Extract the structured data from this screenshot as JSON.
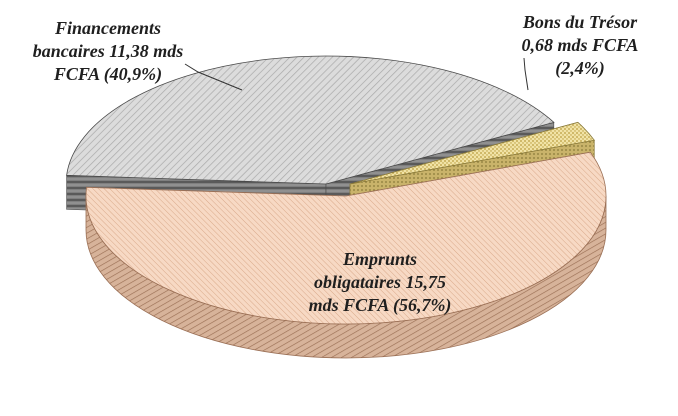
{
  "chart_data": {
    "type": "pie",
    "title": "",
    "slices": [
      {
        "name": "Financements bancaires",
        "value": 11.38,
        "percent": 40.9,
        "unit": "mds FCFA",
        "label_lines": [
          "Financements",
          "bancaires  11,38 mds",
          "FCFA (40,9%)"
        ],
        "colors": {
          "base": "#dcdcdc",
          "hatch": "#a9a9a9",
          "side": "#7f7f7f",
          "side_dark": "#4a4a4a"
        }
      },
      {
        "name": "Bons du Trésor",
        "value": 0.68,
        "percent": 2.4,
        "unit": "mds FCFA",
        "label_lines": [
          "Bons du Trésor",
          "0,68 mds FCFA",
          "(2,4%)"
        ],
        "colors": {
          "base": "#f1e3a6",
          "hatch": "#b89b3d",
          "side": "#c9b36a",
          "side_dark": "#8a7a3a"
        }
      },
      {
        "name": "Emprunts obligataires",
        "value": 15.75,
        "percent": 56.7,
        "unit": "mds FCFA",
        "label_lines": [
          "Emprunts",
          "obligataires  15,75",
          "mds FCFA (56,7%)"
        ],
        "colors": {
          "base": "#f7d9c4",
          "hatch": "#d9a98a",
          "side": "#d7b39a",
          "side_dark": "#9a6f55"
        }
      }
    ],
    "style": "3d-exploded",
    "legend": "none"
  }
}
